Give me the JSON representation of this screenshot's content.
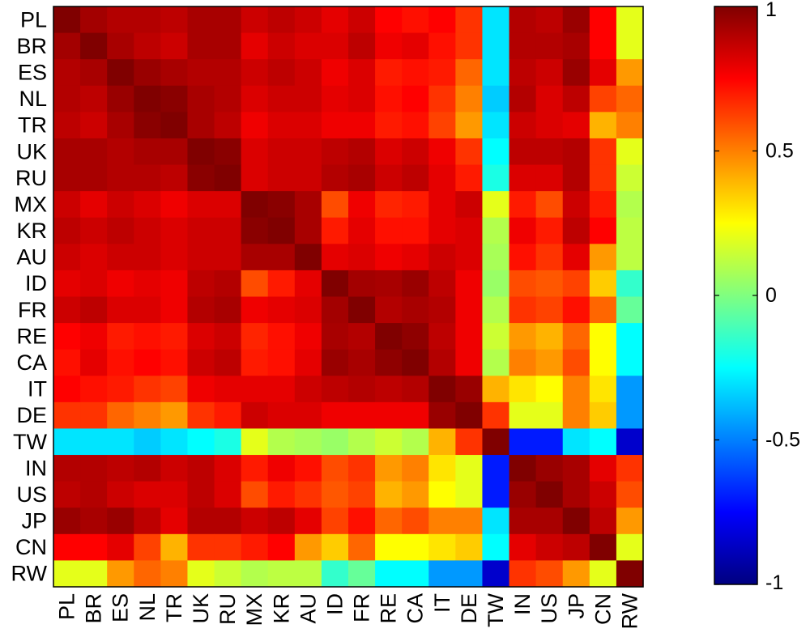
{
  "chart_data": {
    "type": "heatmap",
    "title": "",
    "xlabel": "",
    "ylabel": "",
    "categories": [
      "PL",
      "BR",
      "ES",
      "NL",
      "TR",
      "UK",
      "RU",
      "MX",
      "KR",
      "AU",
      "ID",
      "FR",
      "RE",
      "CA",
      "IT",
      "DE",
      "TW",
      "IN",
      "US",
      "JP",
      "CN",
      "RW"
    ],
    "matrix": [
      [
        1.0,
        0.93,
        0.9,
        0.9,
        0.88,
        0.92,
        0.92,
        0.85,
        0.88,
        0.85,
        0.8,
        0.85,
        0.75,
        0.72,
        0.75,
        0.65,
        -0.3,
        0.9,
        0.88,
        0.95,
        0.75,
        0.2
      ],
      [
        0.93,
        1.0,
        0.92,
        0.88,
        0.85,
        0.92,
        0.92,
        0.8,
        0.85,
        0.82,
        0.82,
        0.88,
        0.78,
        0.8,
        0.72,
        0.65,
        -0.3,
        0.9,
        0.9,
        0.92,
        0.75,
        0.2
      ],
      [
        0.9,
        0.92,
        1.0,
        0.95,
        0.92,
        0.9,
        0.9,
        0.85,
        0.88,
        0.85,
        0.78,
        0.82,
        0.7,
        0.72,
        0.7,
        0.55,
        -0.3,
        0.88,
        0.85,
        0.95,
        0.8,
        0.45
      ],
      [
        0.9,
        0.88,
        0.95,
        1.0,
        0.98,
        0.92,
        0.9,
        0.82,
        0.85,
        0.85,
        0.8,
        0.82,
        0.72,
        0.75,
        0.65,
        0.5,
        -0.35,
        0.9,
        0.82,
        0.88,
        0.62,
        0.55
      ],
      [
        0.88,
        0.85,
        0.92,
        0.98,
        1.0,
        0.92,
        0.88,
        0.78,
        0.82,
        0.82,
        0.78,
        0.78,
        0.7,
        0.72,
        0.62,
        0.45,
        -0.3,
        0.85,
        0.82,
        0.8,
        0.4,
        0.5
      ],
      [
        0.92,
        0.92,
        0.9,
        0.92,
        0.92,
        1.0,
        0.98,
        0.82,
        0.85,
        0.85,
        0.88,
        0.9,
        0.82,
        0.85,
        0.78,
        0.65,
        -0.25,
        0.88,
        0.88,
        0.9,
        0.65,
        0.2
      ],
      [
        0.92,
        0.92,
        0.9,
        0.9,
        0.88,
        0.98,
        1.0,
        0.82,
        0.85,
        0.85,
        0.9,
        0.92,
        0.85,
        0.88,
        0.8,
        0.7,
        -0.2,
        0.82,
        0.82,
        0.9,
        0.65,
        0.15
      ],
      [
        0.85,
        0.8,
        0.85,
        0.82,
        0.78,
        0.82,
        0.82,
        1.0,
        0.98,
        0.92,
        0.6,
        0.78,
        0.68,
        0.7,
        0.8,
        0.85,
        0.2,
        0.7,
        0.6,
        0.85,
        0.7,
        0.1
      ],
      [
        0.88,
        0.85,
        0.88,
        0.85,
        0.82,
        0.85,
        0.85,
        0.98,
        1.0,
        0.92,
        0.7,
        0.8,
        0.72,
        0.72,
        0.8,
        0.82,
        0.1,
        0.78,
        0.7,
        0.88,
        0.75,
        0.12
      ],
      [
        0.85,
        0.82,
        0.85,
        0.85,
        0.82,
        0.85,
        0.85,
        0.92,
        0.92,
        1.0,
        0.8,
        0.82,
        0.78,
        0.8,
        0.85,
        0.82,
        0.08,
        0.72,
        0.65,
        0.8,
        0.45,
        0.12
      ],
      [
        0.8,
        0.82,
        0.78,
        0.8,
        0.78,
        0.88,
        0.9,
        0.6,
        0.7,
        0.8,
        1.0,
        0.93,
        0.92,
        0.95,
        0.88,
        0.78,
        0.05,
        0.6,
        0.58,
        0.62,
        0.35,
        -0.15
      ],
      [
        0.85,
        0.88,
        0.82,
        0.82,
        0.78,
        0.9,
        0.92,
        0.78,
        0.8,
        0.82,
        0.93,
        1.0,
        0.9,
        0.92,
        0.9,
        0.78,
        0.1,
        0.65,
        0.62,
        0.72,
        0.55,
        -0.05
      ],
      [
        0.75,
        0.78,
        0.7,
        0.72,
        0.7,
        0.82,
        0.85,
        0.68,
        0.72,
        0.78,
        0.92,
        0.9,
        1.0,
        0.97,
        0.88,
        0.78,
        0.15,
        0.45,
        0.4,
        0.55,
        0.25,
        -0.25
      ],
      [
        0.72,
        0.8,
        0.72,
        0.75,
        0.72,
        0.85,
        0.88,
        0.7,
        0.72,
        0.8,
        0.95,
        0.92,
        0.97,
        1.0,
        0.9,
        0.78,
        0.1,
        0.5,
        0.45,
        0.6,
        0.25,
        -0.25
      ],
      [
        0.75,
        0.72,
        0.7,
        0.65,
        0.62,
        0.78,
        0.8,
        0.8,
        0.8,
        0.85,
        0.88,
        0.9,
        0.88,
        0.9,
        1.0,
        0.95,
        0.4,
        0.3,
        0.25,
        0.5,
        0.3,
        -0.45
      ],
      [
        0.65,
        0.65,
        0.55,
        0.5,
        0.45,
        0.65,
        0.7,
        0.85,
        0.82,
        0.82,
        0.78,
        0.78,
        0.78,
        0.78,
        0.95,
        1.0,
        0.65,
        0.2,
        0.2,
        0.5,
        0.35,
        -0.45
      ],
      [
        -0.3,
        -0.3,
        -0.3,
        -0.35,
        -0.3,
        -0.25,
        -0.2,
        0.2,
        0.1,
        0.08,
        0.05,
        0.1,
        0.15,
        0.1,
        0.4,
        0.65,
        1.0,
        -0.7,
        -0.7,
        -0.3,
        -0.25,
        -0.85
      ],
      [
        0.9,
        0.9,
        0.88,
        0.9,
        0.85,
        0.88,
        0.82,
        0.7,
        0.78,
        0.72,
        0.6,
        0.65,
        0.45,
        0.5,
        0.3,
        0.2,
        -0.7,
        1.0,
        0.95,
        0.92,
        0.8,
        0.65
      ],
      [
        0.88,
        0.9,
        0.85,
        0.82,
        0.82,
        0.88,
        0.82,
        0.6,
        0.7,
        0.65,
        0.58,
        0.62,
        0.4,
        0.45,
        0.25,
        0.2,
        -0.7,
        0.95,
        1.0,
        0.92,
        0.85,
        0.6
      ],
      [
        0.95,
        0.92,
        0.95,
        0.88,
        0.8,
        0.9,
        0.9,
        0.85,
        0.88,
        0.8,
        0.62,
        0.72,
        0.55,
        0.6,
        0.5,
        0.5,
        -0.3,
        0.92,
        0.92,
        1.0,
        0.88,
        0.45
      ],
      [
        0.75,
        0.75,
        0.8,
        0.62,
        0.4,
        0.65,
        0.65,
        0.7,
        0.75,
        0.45,
        0.35,
        0.55,
        0.25,
        0.25,
        0.3,
        0.35,
        -0.25,
        0.8,
        0.85,
        0.88,
        1.0,
        0.2
      ],
      [
        0.2,
        0.2,
        0.45,
        0.55,
        0.5,
        0.2,
        0.15,
        0.1,
        0.12,
        0.12,
        -0.15,
        -0.05,
        -0.25,
        -0.25,
        -0.45,
        -0.45,
        -0.85,
        0.65,
        0.6,
        0.45,
        0.2,
        1.0
      ]
    ],
    "colorbar": {
      "min": -1,
      "max": 1,
      "ticks": [
        1,
        0.5,
        0,
        -0.5,
        -1
      ],
      "tick_labels": [
        "1",
        "0.5",
        "0",
        "-0.5",
        "-1"
      ],
      "colormap": "jet"
    },
    "grid": false,
    "legend": "colorbar-right"
  }
}
